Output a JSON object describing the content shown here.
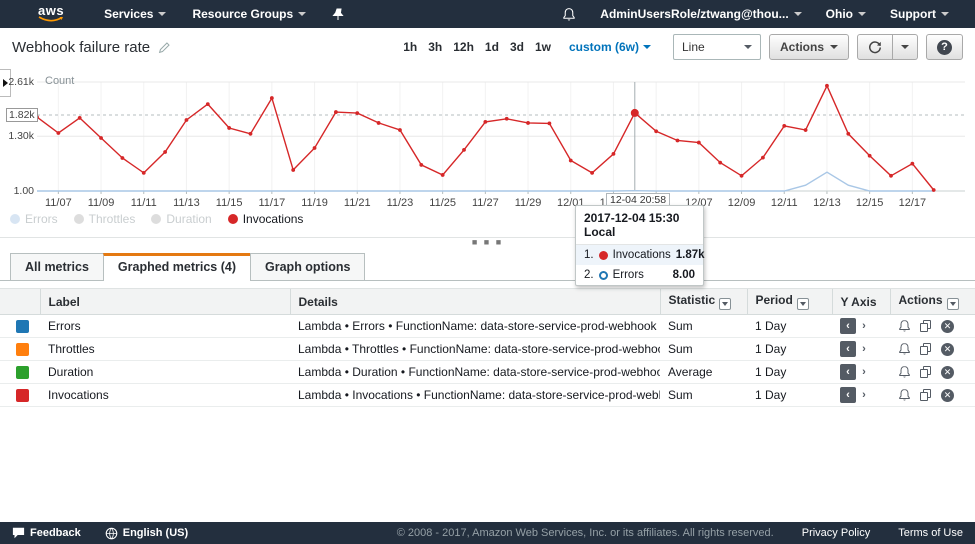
{
  "nav": {
    "logo": "aws",
    "services": "Services",
    "resource_groups": "Resource Groups",
    "user": "AdminUsersRole/ztwang@thou...",
    "region": "Ohio",
    "support": "Support"
  },
  "header": {
    "title": "Webhook failure rate",
    "time_ranges": [
      "1h",
      "3h",
      "12h",
      "1d",
      "3d",
      "1w"
    ],
    "custom_range": "custom (6w)",
    "chart_type": "Line",
    "actions_label": "Actions"
  },
  "chart_data": {
    "type": "line",
    "ylabel": "Count",
    "ylim": [
      1,
      2610
    ],
    "grid": true,
    "legend_position": "bottom-left",
    "y_ticks": [
      {
        "label": "2.61k",
        "value": 2610
      },
      {
        "label": "1.30k",
        "value": 1310
      },
      {
        "label": "1.00",
        "value": 1
      }
    ],
    "hover_y": {
      "label": "1.82k",
      "value": 1820
    },
    "crosshair": {
      "index": 28,
      "label": "12-04 20:58"
    },
    "x_tick_labels": [
      "11/07",
      "11/09",
      "11/11",
      "11/13",
      "11/15",
      "11/17",
      "11/19",
      "11/21",
      "11/23",
      "11/25",
      "11/27",
      "11/29",
      "12/01",
      "12/03",
      "12/05",
      "12/07",
      "12/09",
      "12/11",
      "12/13",
      "12/15",
      "12/17"
    ],
    "x_tick_start_index": 1,
    "x_tick_step": 2,
    "series": [
      {
        "name": "Invocations",
        "color": "#d62728",
        "faded": false,
        "point_markers": true,
        "values": [
          1770,
          1390,
          1750,
          1270,
          790,
          435,
          935,
          1700,
          2080,
          1510,
          1370,
          2225,
          505,
          1030,
          1890,
          1865,
          1630,
          1460,
          625,
          385,
          985,
          1655,
          1730,
          1630,
          1620,
          730,
          435,
          890,
          1870,
          1430,
          1210,
          1160,
          680,
          365,
          800,
          1560,
          1460,
          2520,
          1370,
          845,
          365,
          655,
          25
        ]
      },
      {
        "name": "Errors",
        "color": "#a9c7e6",
        "faded": true,
        "point_markers": false,
        "values": [
          1,
          1,
          1,
          1,
          1,
          1,
          1,
          1,
          1,
          1,
          1,
          1,
          1,
          1,
          1,
          1,
          1,
          1,
          1,
          1,
          1,
          1,
          1,
          1,
          1,
          1,
          1,
          1,
          8,
          1,
          1,
          1,
          1,
          1,
          1,
          1,
          140,
          450,
          140,
          1,
          1,
          1,
          1
        ]
      }
    ],
    "legend": [
      {
        "label": "Errors",
        "color": "#a9c7e6",
        "faded": true
      },
      {
        "label": "Throttles",
        "color": "#b5b5b5",
        "faded": true
      },
      {
        "label": "Duration",
        "color": "#b5b5b5",
        "faded": true
      },
      {
        "label": "Invocations",
        "color": "#d62728",
        "faded": false
      }
    ]
  },
  "tooltip": {
    "title": "2017-12-04 15:30 Local",
    "rows": [
      {
        "rank": "1.",
        "name": "Invocations",
        "value": "1.87k",
        "color": "#d62728",
        "marker": "filled",
        "highlight": true
      },
      {
        "rank": "2.",
        "name": "Errors",
        "value": "8.00",
        "color": "#1f77b4",
        "marker": "open",
        "highlight": false
      }
    ]
  },
  "tabs": [
    {
      "label": "All metrics",
      "active": false
    },
    {
      "label": "Graphed metrics (4)",
      "active": true
    },
    {
      "label": "Graph options",
      "active": false
    }
  ],
  "table": {
    "columns": [
      {
        "label": "",
        "filter": false
      },
      {
        "label": "Label",
        "filter": false
      },
      {
        "label": "Details",
        "filter": false
      },
      {
        "label": "Statistic",
        "filter": true
      },
      {
        "label": "Period",
        "filter": true
      },
      {
        "label": "Y Axis",
        "filter": false
      },
      {
        "label": "Actions",
        "filter": true
      }
    ],
    "rows": [
      {
        "color": "#1f77b4",
        "label": "Errors",
        "details": "Lambda • Errors • FunctionName: data-store-service-prod-webhook",
        "statistic": "Sum",
        "period": "1 Day"
      },
      {
        "color": "#ff7f0e",
        "label": "Throttles",
        "details": "Lambda • Throttles • FunctionName: data-store-service-prod-webhook",
        "statistic": "Sum",
        "period": "1 Day"
      },
      {
        "color": "#2ca02c",
        "label": "Duration",
        "details": "Lambda • Duration • FunctionName: data-store-service-prod-webhook",
        "statistic": "Average",
        "period": "1 Day"
      },
      {
        "color": "#d62728",
        "label": "Invocations",
        "details": "Lambda • Invocations • FunctionName: data-store-service-prod-webhook",
        "statistic": "Sum",
        "period": "1 Day"
      }
    ]
  },
  "footer": {
    "feedback": "Feedback",
    "language": "English (US)",
    "copyright": "© 2008 - 2017, Amazon Web Services, Inc. or its affiliates. All rights reserved.",
    "privacy": "Privacy Policy",
    "terms": "Terms of Use"
  }
}
